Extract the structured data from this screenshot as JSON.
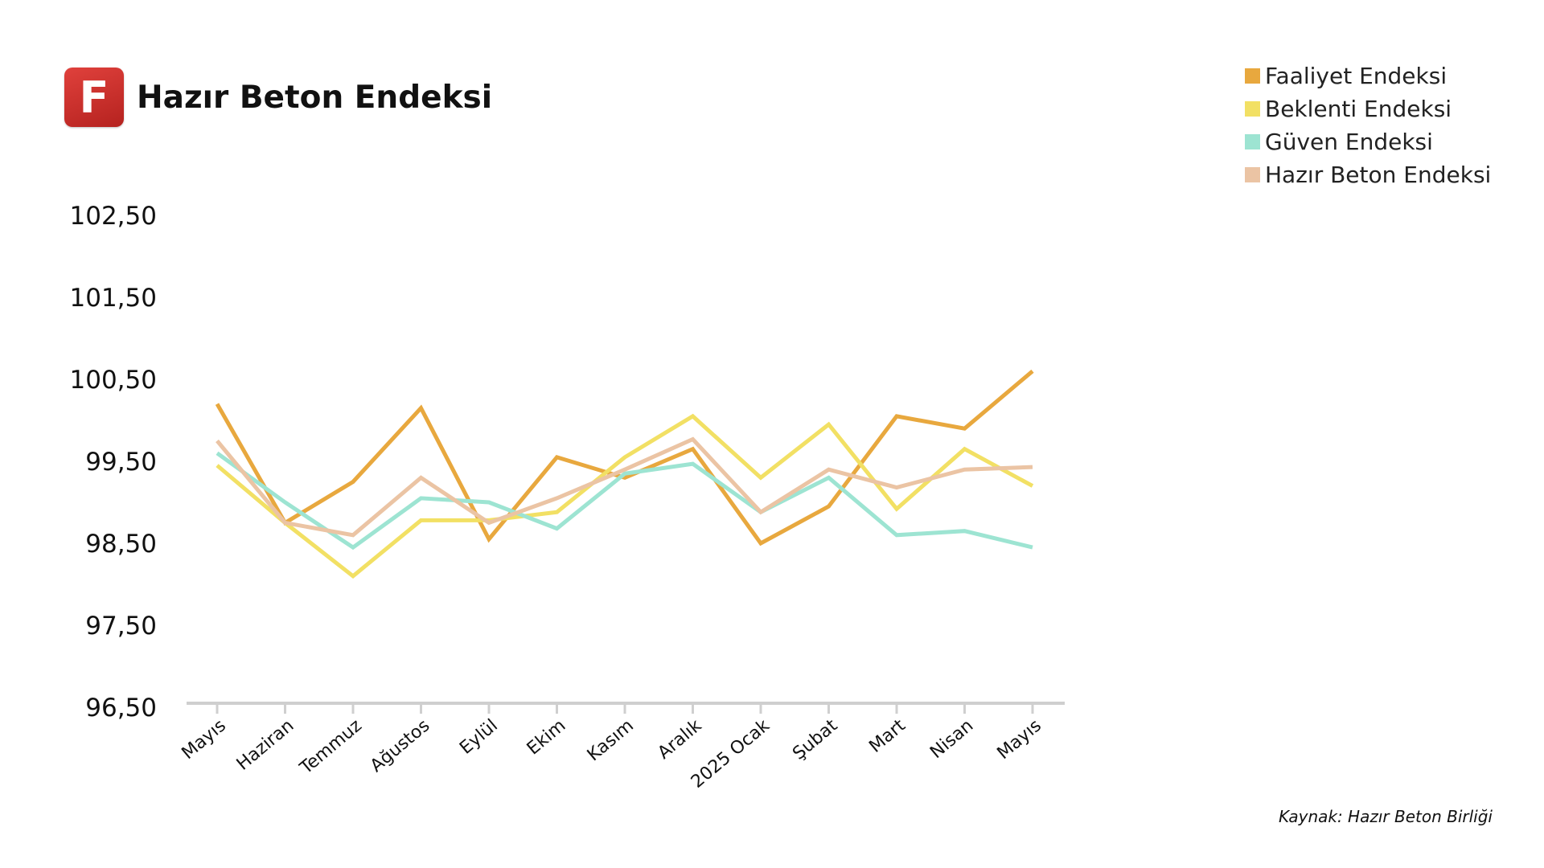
{
  "header": {
    "logo_letter": "F",
    "title": "Hazır Beton Endeksi"
  },
  "source": "Kaynak: Hazır Beton Birliği",
  "chart_data": {
    "type": "line",
    "title": "Hazır Beton Endeksi",
    "xlabel": "",
    "ylabel": "",
    "categories": [
      "Mayıs",
      "Haziran",
      "Temmuz",
      "Ağustos",
      "Eylül",
      "Ekim",
      "Kasım",
      "Aralık",
      "2025 Ocak",
      "Şubat",
      "Mart",
      "Nisan",
      "Mayıs"
    ],
    "y_ticks": [
      "102,50",
      "101,50",
      "100,50",
      "99,50",
      "98,50",
      "97,50",
      "96,50"
    ],
    "ylim": [
      96.5,
      102.5
    ],
    "grid": false,
    "legend_position": "top-right",
    "series": [
      {
        "name": "Faaliyet Endeksi",
        "color": "#e8a83e",
        "values": [
          100.2,
          98.75,
          99.25,
          100.15,
          98.55,
          99.55,
          99.3,
          99.65,
          98.5,
          98.95,
          100.05,
          99.9,
          100.6
        ]
      },
      {
        "name": "Beklenti Endeksi",
        "color": "#f2e064",
        "values": [
          99.45,
          98.75,
          98.1,
          98.78,
          98.78,
          98.88,
          99.55,
          100.05,
          99.3,
          99.95,
          98.92,
          99.65,
          99.2
        ]
      },
      {
        "name": "Güven Endeksi",
        "color": "#9de4d2",
        "values": [
          99.6,
          99.0,
          98.45,
          99.05,
          99.0,
          98.68,
          99.35,
          99.47,
          98.88,
          99.3,
          98.6,
          98.65,
          98.45
        ]
      },
      {
        "name": "Hazır Beton Endeksi",
        "color": "#ebc4a4",
        "values": [
          99.75,
          98.75,
          98.6,
          99.3,
          98.75,
          99.05,
          99.4,
          99.77,
          98.88,
          99.4,
          99.18,
          99.4,
          99.43
        ]
      }
    ]
  }
}
